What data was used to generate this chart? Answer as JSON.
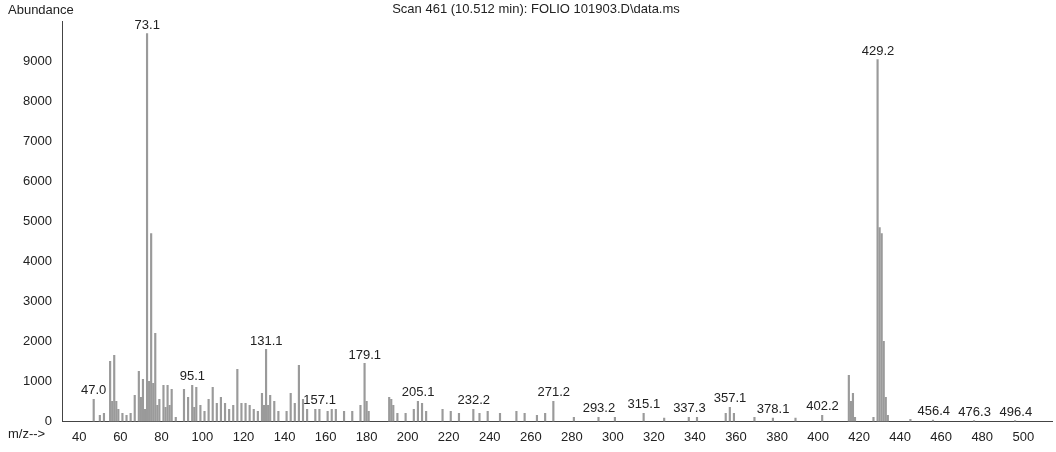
{
  "chart_data": {
    "type": "bar",
    "title": "Scan 461 (10.512 min): FOLIO 101903.D\\data.ms",
    "xlabel": "m/z-->",
    "ylabel": "Abundance",
    "color": "#9a9a9a",
    "x": [
      47,
      50,
      52,
      55,
      56,
      57,
      58,
      59,
      61,
      63,
      65,
      67,
      69,
      70,
      71,
      72,
      73,
      74,
      75,
      76,
      77,
      78,
      79,
      81,
      82,
      83,
      84,
      85,
      87,
      91,
      93,
      95,
      96,
      97,
      99,
      101,
      103,
      105,
      107,
      109,
      111,
      113,
      115,
      117,
      119,
      121,
      123,
      125,
      127,
      129,
      130,
      131,
      132,
      133,
      135,
      137,
      141,
      143,
      145,
      147,
      149,
      151,
      155,
      157,
      161,
      163,
      165,
      169,
      173,
      177,
      179,
      180,
      181,
      191,
      192,
      193,
      195,
      199,
      203,
      205,
      207,
      209,
      217,
      221,
      225,
      232,
      235,
      239,
      245,
      253,
      257,
      263,
      267,
      271,
      281,
      293,
      301,
      315,
      325,
      337,
      341,
      355,
      357,
      359,
      369,
      378,
      389,
      402,
      415,
      416,
      417,
      418,
      427,
      429,
      430,
      431,
      432,
      433,
      434,
      445,
      456,
      476,
      496
    ],
    "values": [
      550,
      150,
      200,
      1500,
      500,
      1650,
      500,
      300,
      200,
      150,
      200,
      650,
      1250,
      600,
      1050,
      300,
      9700,
      1000,
      4700,
      950,
      2200,
      400,
      550,
      900,
      350,
      900,
      400,
      800,
      100,
      800,
      600,
      900,
      350,
      850,
      400,
      250,
      550,
      850,
      450,
      600,
      450,
      300,
      400,
      1300,
      450,
      450,
      400,
      300,
      250,
      700,
      400,
      1800,
      400,
      650,
      500,
      250,
      250,
      700,
      450,
      1400,
      550,
      300,
      300,
      300,
      250,
      300,
      300,
      250,
      250,
      400,
      1450,
      500,
      250,
      600,
      550,
      400,
      200,
      200,
      300,
      500,
      450,
      250,
      300,
      250,
      200,
      300,
      200,
      250,
      200,
      250,
      200,
      150,
      200,
      500,
      100,
      100,
      100,
      200,
      80,
      100,
      100,
      200,
      350,
      200,
      100,
      80,
      80,
      150,
      1150,
      500,
      700,
      100,
      100,
      9050,
      4850,
      4700,
      2000,
      600,
      150,
      50,
      30,
      20,
      20
    ],
    "xlim": [
      32,
      514
    ],
    "xticks": [
      40,
      60,
      80,
      100,
      120,
      140,
      160,
      180,
      200,
      220,
      240,
      260,
      280,
      300,
      320,
      340,
      360,
      380,
      400,
      420,
      440,
      460,
      480,
      500
    ],
    "ylim": [
      0,
      10000
    ],
    "yticks": [
      0,
      1000,
      2000,
      3000,
      4000,
      5000,
      6000,
      7000,
      8000,
      9000
    ],
    "annotations": [
      {
        "text": "47.0",
        "x": 47,
        "y": 550
      },
      {
        "text": "73.1",
        "x": 73.1,
        "y": 9700
      },
      {
        "text": "95.1",
        "x": 95.1,
        "y": 900
      },
      {
        "text": "131.1",
        "x": 131.1,
        "y": 1800
      },
      {
        "text": "157.1",
        "x": 157.1,
        "y": 300
      },
      {
        "text": "179.1",
        "x": 179.1,
        "y": 1450
      },
      {
        "text": "205.1",
        "x": 205.1,
        "y": 500
      },
      {
        "text": "232.2",
        "x": 232.2,
        "y": 300
      },
      {
        "text": "271.2",
        "x": 271.2,
        "y": 500
      },
      {
        "text": "293.2",
        "x": 293.2,
        "y": 100
      },
      {
        "text": "315.1",
        "x": 315.1,
        "y": 200
      },
      {
        "text": "337.3",
        "x": 337.3,
        "y": 100
      },
      {
        "text": "357.1",
        "x": 357.1,
        "y": 350
      },
      {
        "text": "378.1",
        "x": 378.1,
        "y": 80
      },
      {
        "text": "402.2",
        "x": 402.2,
        "y": 150
      },
      {
        "text": "429.2",
        "x": 429.2,
        "y": 9050
      },
      {
        "text": "456.4",
        "x": 456.4,
        "y": 30
      },
      {
        "text": "476.3",
        "x": 476.3,
        "y": 20
      },
      {
        "text": "496.4",
        "x": 496.4,
        "y": 20
      }
    ],
    "grid": false,
    "legend": false
  }
}
